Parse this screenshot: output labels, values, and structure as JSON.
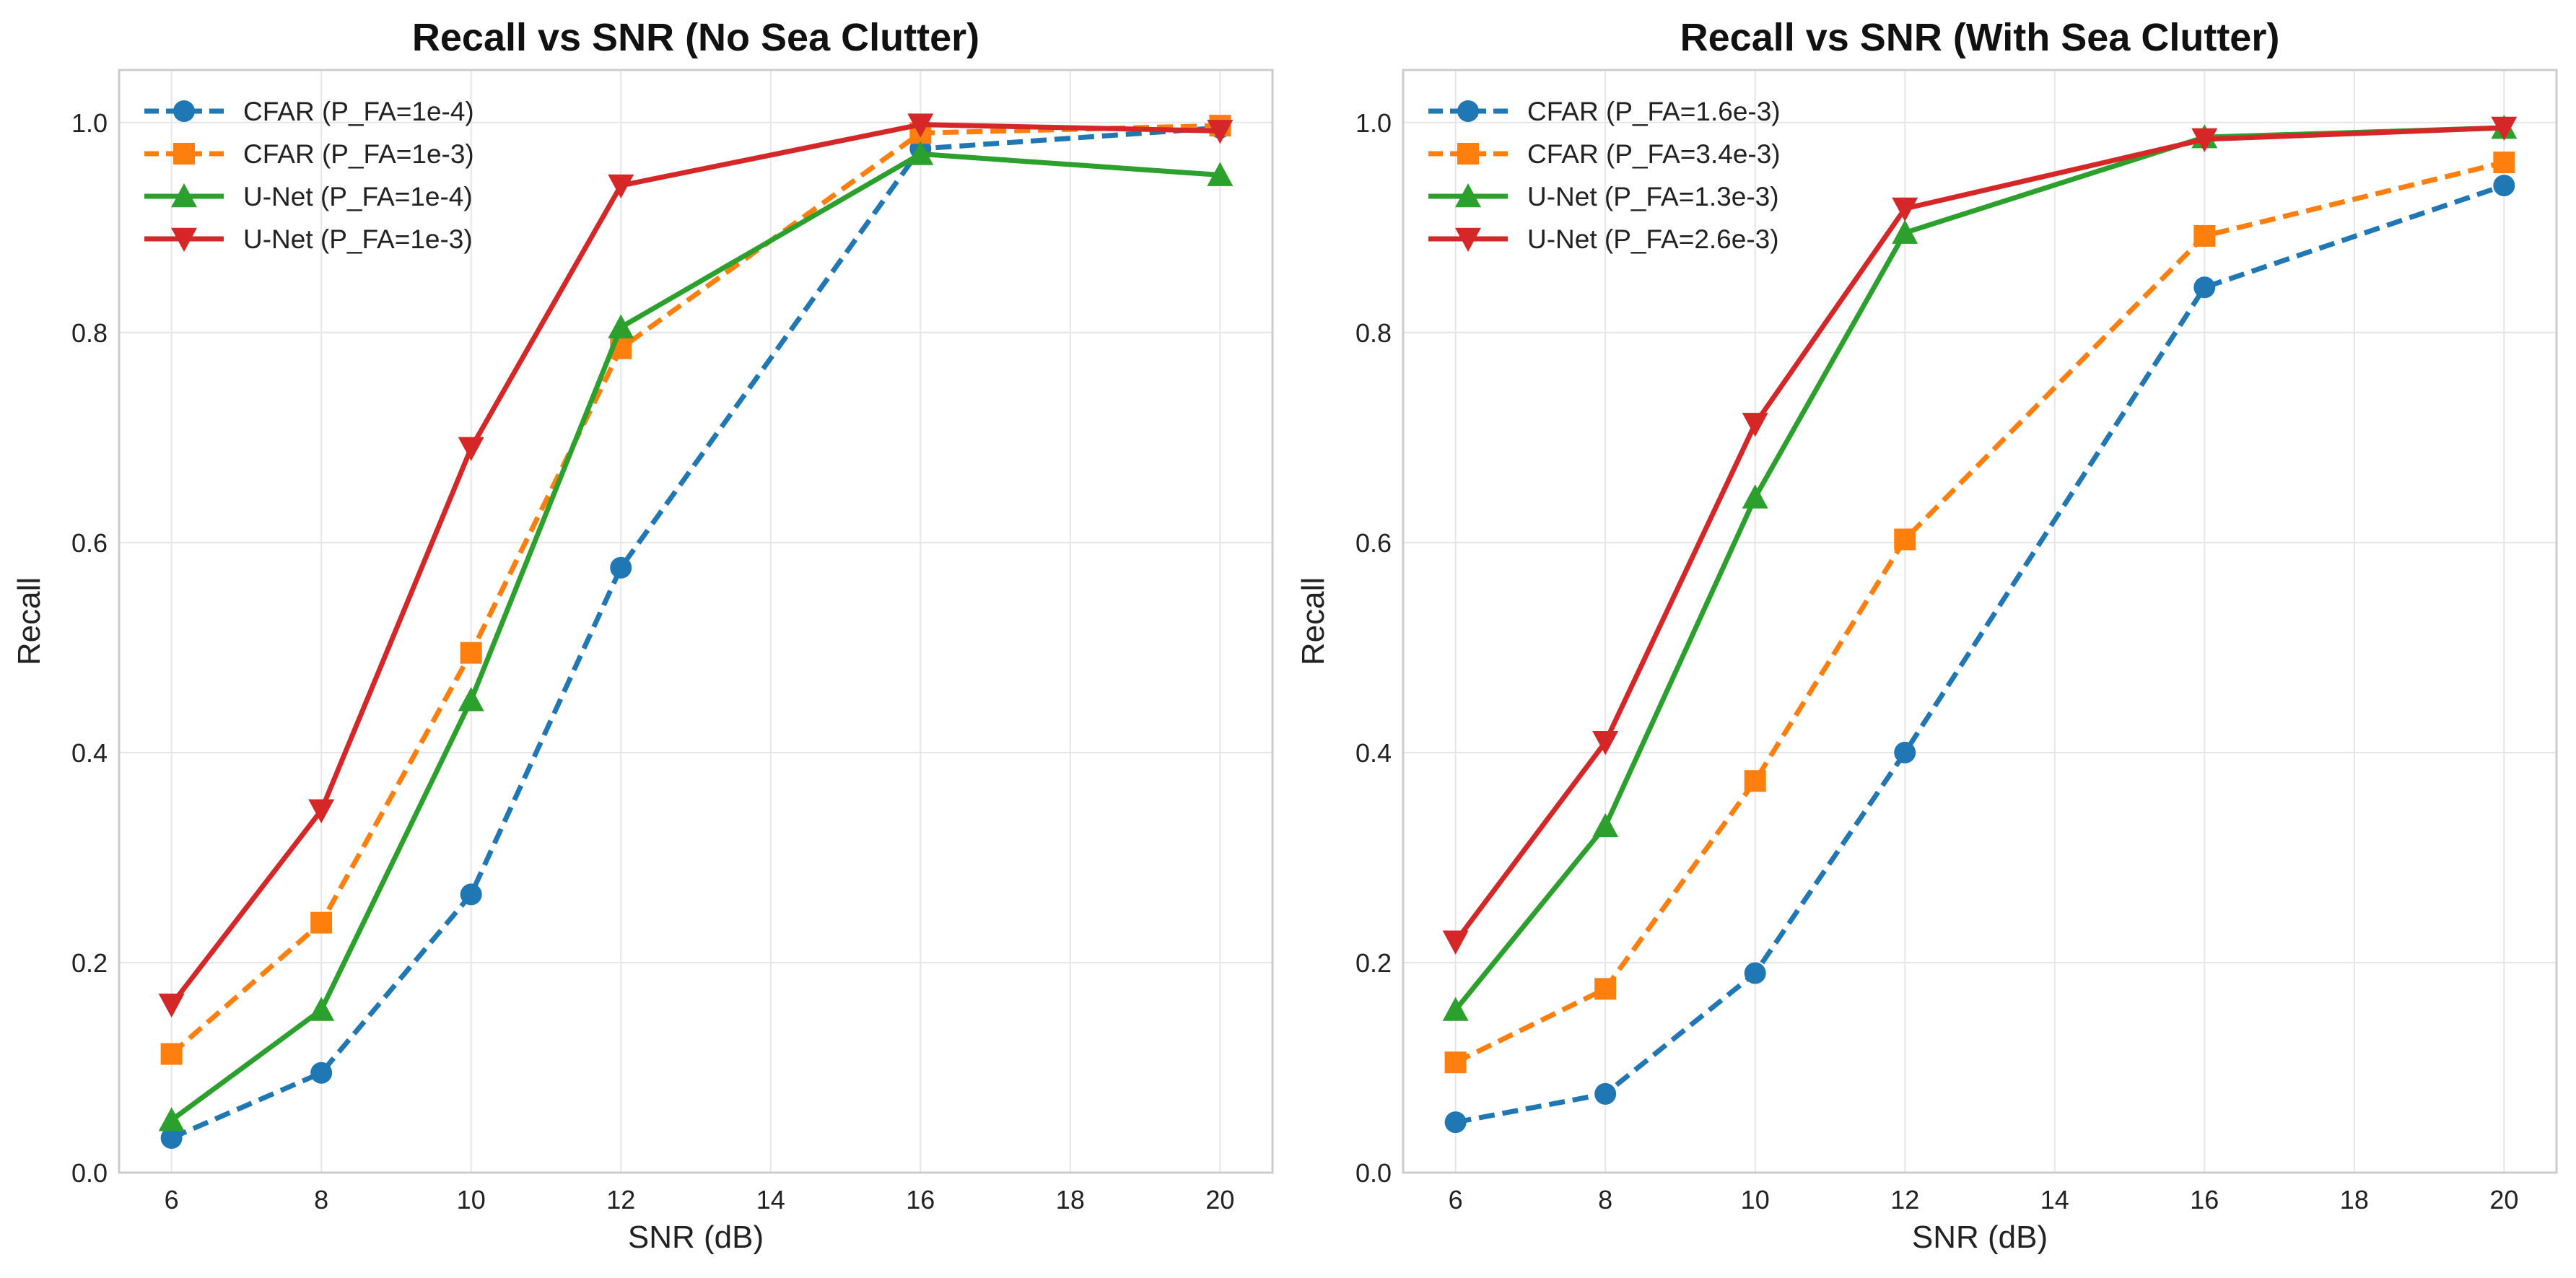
{
  "chart_data": [
    {
      "type": "line",
      "title": "Recall vs SNR (No Sea Clutter)",
      "xlabel": "SNR (dB)",
      "ylabel": "Recall",
      "xlim": [
        5.3,
        20.7
      ],
      "ylim": [
        0.0,
        1.05
      ],
      "xticks": [
        6,
        8,
        10,
        12,
        14,
        16,
        18,
        20
      ],
      "yticks": [
        0.0,
        0.2,
        0.4,
        0.6,
        0.8,
        1.0
      ],
      "grid": true,
      "legend_position": "upper-left",
      "x": [
        6,
        8,
        10,
        12,
        16,
        20
      ],
      "series": [
        {
          "name": "CFAR (P_FA=1e-4)",
          "values": [
            0.033,
            0.095,
            0.265,
            0.576,
            0.975,
            0.995
          ],
          "color": "#1f77b4",
          "dash": "dashed",
          "marker": "circle"
        },
        {
          "name": "CFAR (P_FA=1e-3)",
          "values": [
            0.113,
            0.238,
            0.495,
            0.785,
            0.99,
            0.997
          ],
          "color": "#ff7f0e",
          "dash": "dashed",
          "marker": "square"
        },
        {
          "name": "U-Net (P_FA=1e-4)",
          "values": [
            0.05,
            0.155,
            0.45,
            0.805,
            0.97,
            0.95
          ],
          "color": "#2ca02c",
          "dash": "solid",
          "marker": "triangle-up"
        },
        {
          "name": "U-Net (P_FA=1e-3)",
          "values": [
            0.16,
            0.345,
            0.69,
            0.94,
            0.998,
            0.992
          ],
          "color": "#d62728",
          "dash": "solid",
          "marker": "triangle-down"
        }
      ]
    },
    {
      "type": "line",
      "title": "Recall vs SNR (With Sea Clutter)",
      "xlabel": "SNR (dB)",
      "ylabel": "Recall",
      "xlim": [
        5.3,
        20.7
      ],
      "ylim": [
        0.0,
        1.05
      ],
      "xticks": [
        6,
        8,
        10,
        12,
        14,
        16,
        18,
        20
      ],
      "yticks": [
        0.0,
        0.2,
        0.4,
        0.6,
        0.8,
        1.0
      ],
      "grid": true,
      "legend_position": "upper-left",
      "x": [
        6,
        8,
        10,
        12,
        16,
        20
      ],
      "series": [
        {
          "name": "CFAR (P_FA=1.6e-3)",
          "values": [
            0.048,
            0.075,
            0.19,
            0.4,
            0.843,
            0.94
          ],
          "color": "#1f77b4",
          "dash": "dashed",
          "marker": "circle"
        },
        {
          "name": "CFAR (P_FA=3.4e-3)",
          "values": [
            0.105,
            0.175,
            0.373,
            0.603,
            0.892,
            0.962
          ],
          "color": "#ff7f0e",
          "dash": "dashed",
          "marker": "square"
        },
        {
          "name": "U-Net (P_FA=1.3e-3)",
          "values": [
            0.155,
            0.33,
            0.643,
            0.895,
            0.986,
            0.995
          ],
          "color": "#2ca02c",
          "dash": "solid",
          "marker": "triangle-up"
        },
        {
          "name": "U-Net (P_FA=2.6e-3)",
          "values": [
            0.22,
            0.41,
            0.713,
            0.918,
            0.984,
            0.995
          ],
          "color": "#d62728",
          "dash": "solid",
          "marker": "triangle-down"
        }
      ]
    }
  ]
}
